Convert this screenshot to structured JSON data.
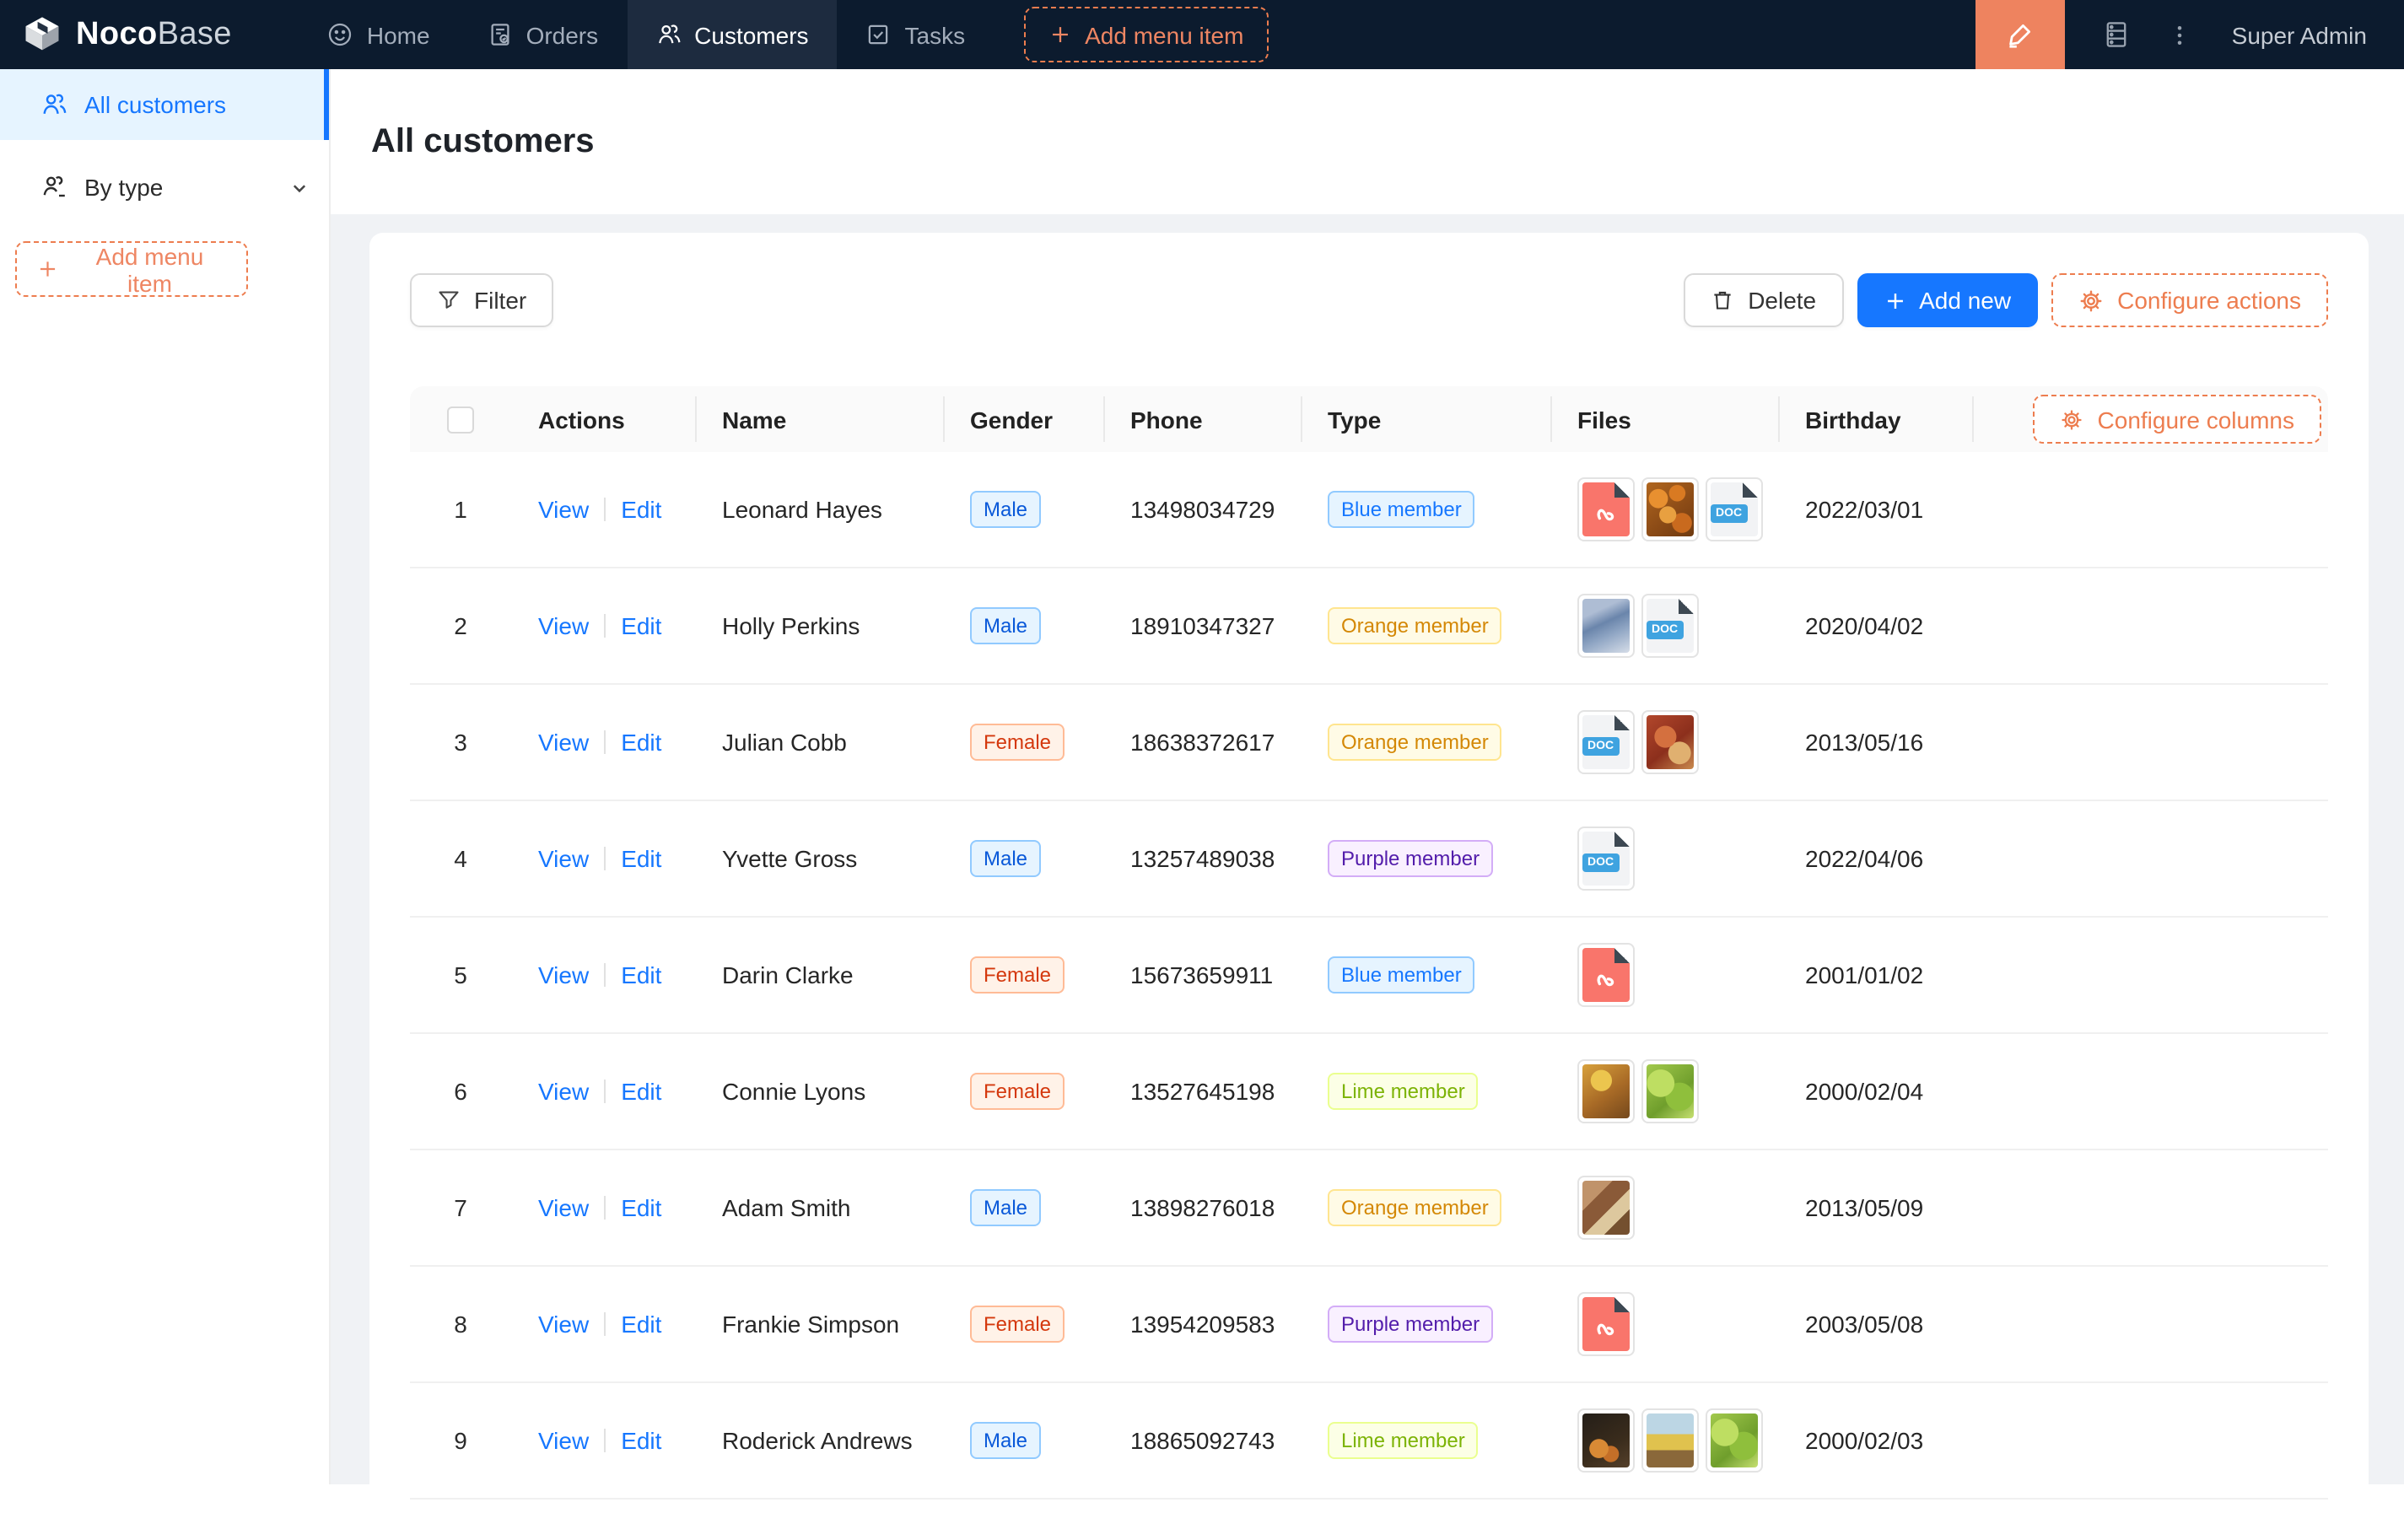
{
  "navbar": {
    "logo_bold": "Noco",
    "logo_light": "Base",
    "items": [
      {
        "label": "Home",
        "active": false
      },
      {
        "label": "Orders",
        "active": false
      },
      {
        "label": "Customers",
        "active": true
      },
      {
        "label": "Tasks",
        "active": false
      }
    ],
    "add_menu_item_label": "Add menu item",
    "user_name": "Super Admin"
  },
  "sidebar": {
    "items": [
      {
        "label": "All customers",
        "active": true
      },
      {
        "label": "By type",
        "active": false
      }
    ],
    "add_menu_item_label": "Add menu item"
  },
  "page": {
    "title": "All customers"
  },
  "toolbar": {
    "filter_label": "Filter",
    "delete_label": "Delete",
    "add_new_label": "Add new",
    "configure_actions_label": "Configure actions"
  },
  "table": {
    "columns": [
      "",
      "Actions",
      "Name",
      "Gender",
      "Phone",
      "Type",
      "Files",
      "Birthday"
    ],
    "configure_columns_label": "Configure columns",
    "view_label": "View",
    "edit_label": "Edit",
    "doc_label": "DOC",
    "rows": [
      {
        "index": 1,
        "name": "Leonard Hayes",
        "gender": "Male",
        "phone": "13498034729",
        "type": "Blue member",
        "type_color": "blue",
        "birthday": "2022/03/01",
        "files": [
          {
            "kind": "pdf"
          },
          {
            "kind": "img",
            "variant": "pumpkins"
          },
          {
            "kind": "doc"
          }
        ]
      },
      {
        "index": 2,
        "name": "Holly Perkins",
        "gender": "Male",
        "phone": "18910347327",
        "type": "Orange member",
        "type_color": "gold",
        "birthday": "2020/04/02",
        "files": [
          {
            "kind": "img",
            "variant": "bluescene"
          },
          {
            "kind": "doc"
          }
        ]
      },
      {
        "index": 3,
        "name": "Julian Cobb",
        "gender": "Female",
        "phone": "18638372617",
        "type": "Orange member",
        "type_color": "gold",
        "birthday": "2013/05/16",
        "files": [
          {
            "kind": "doc"
          },
          {
            "kind": "img",
            "variant": "pizza"
          }
        ]
      },
      {
        "index": 4,
        "name": "Yvette Gross",
        "gender": "Male",
        "phone": "13257489038",
        "type": "Purple member",
        "type_color": "purple",
        "birthday": "2022/04/06",
        "files": [
          {
            "kind": "doc"
          }
        ]
      },
      {
        "index": 5,
        "name": "Darin Clarke",
        "gender": "Female",
        "phone": "15673659911",
        "type": "Blue member",
        "type_color": "blue",
        "birthday": "2001/01/02",
        "files": [
          {
            "kind": "pdf"
          }
        ]
      },
      {
        "index": 6,
        "name": "Connie Lyons",
        "gender": "Female",
        "phone": "13527645198",
        "type": "Lime member",
        "type_color": "lime",
        "birthday": "2000/02/04",
        "files": [
          {
            "kind": "img",
            "variant": "warmfood"
          },
          {
            "kind": "img",
            "variant": "lettuce"
          }
        ]
      },
      {
        "index": 7,
        "name": "Adam Smith",
        "gender": "Male",
        "phone": "13898276018",
        "type": "Orange member",
        "type_color": "gold",
        "birthday": "2013/05/09",
        "files": [
          {
            "kind": "img",
            "variant": "collage"
          }
        ]
      },
      {
        "index": 8,
        "name": "Frankie Simpson",
        "gender": "Female",
        "phone": "13954209583",
        "type": "Purple member",
        "type_color": "purple",
        "birthday": "2003/05/08",
        "files": [
          {
            "kind": "pdf"
          }
        ]
      },
      {
        "index": 9,
        "name": "Roderick Andrews",
        "gender": "Male",
        "phone": "18865092743",
        "type": "Lime member",
        "type_color": "lime",
        "birthday": "2000/02/03",
        "files": [
          {
            "kind": "img",
            "variant": "darkfruit"
          },
          {
            "kind": "img",
            "variant": "fruitbowl"
          },
          {
            "kind": "img",
            "variant": "lettuce"
          }
        ]
      }
    ]
  },
  "colors": {
    "primary_blue": "#1677ff",
    "designer_orange": "#ed7d4f",
    "navbar_bg": "#0c1b2e",
    "page_bg": "#f0f2f5",
    "active_tab_bg": "#1d2b3f"
  }
}
